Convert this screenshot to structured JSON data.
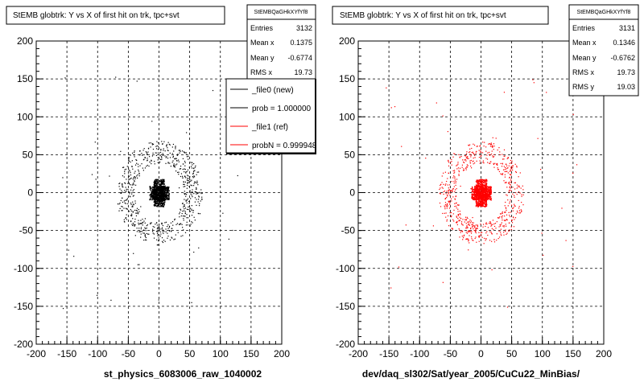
{
  "chart_data": [
    {
      "type": "scatter",
      "title": "StEMB globtrk: Y vs X of first hit on trk, tpc+svt",
      "xlabel": "st_physics_6083006_raw_1040002",
      "ylabel": "",
      "xlim": [
        -200,
        200
      ],
      "ylim": [
        -200,
        200
      ],
      "xticks": [
        "-200",
        "-150",
        "-100",
        "-50",
        "0",
        "50",
        "100",
        "150",
        "200"
      ],
      "yticks": [
        "-200",
        "-150",
        "-100",
        "-50",
        "0",
        "50",
        "100",
        "150",
        "200"
      ],
      "grid": true,
      "color": "#000000",
      "stats": {
        "header": "StEMBQaGHkXYfYf8",
        "rows": [
          {
            "label": "Entries",
            "value": "3132"
          },
          {
            "label": "Mean x",
            "value": "0.1375"
          },
          {
            "label": "Mean y",
            "value": "-0.6774"
          },
          {
            "label": "RMS x",
            "value": "19.73"
          }
        ]
      },
      "legend": {
        "placement": "top-right",
        "entries": [
          {
            "label": "_file0 (new)",
            "color": "#000000"
          },
          {
            "label": "prob = 1.000000",
            "color": "#000000"
          },
          {
            "label": "_file1 (ref)",
            "color": "#ff0000"
          },
          {
            "label": "probN = 0.999948",
            "color": "#ff0000"
          }
        ]
      }
    },
    {
      "type": "scatter",
      "title": "StEMB globtrk: Y vs X of first hit on trk, tpc+svt",
      "xlabel": "dev/daq_sl302/Sat/year_2005/CuCu22_MinBias/",
      "ylabel": "",
      "xlim": [
        -200,
        200
      ],
      "ylim": [
        -200,
        200
      ],
      "xticks": [
        "-200",
        "-150",
        "-100",
        "-50",
        "0",
        "50",
        "100",
        "150",
        "200"
      ],
      "yticks": [
        "-200",
        "-150",
        "-100",
        "-50",
        "0",
        "50",
        "100",
        "150",
        "200"
      ],
      "grid": true,
      "color": "#ff0000",
      "stats": {
        "header": "StEMBQaGHkXYfYf8",
        "rows": [
          {
            "label": "Entries",
            "value": "3131"
          },
          {
            "label": "Mean x",
            "value": "0.1346"
          },
          {
            "label": "Mean y",
            "value": "-0.6762"
          },
          {
            "label": "RMS x",
            "value": "19.73"
          },
          {
            "label": "RMS y",
            "value": "19.03"
          }
        ]
      }
    }
  ]
}
